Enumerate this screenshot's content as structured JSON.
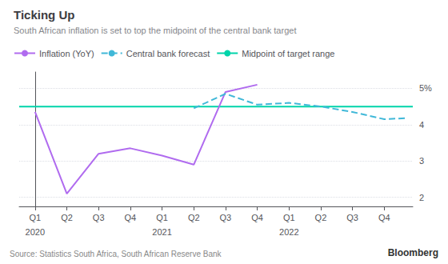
{
  "chart_data": {
    "type": "line",
    "title": "Ticking Up",
    "subtitle": "South African inflation is set to top the midpoint of the central bank target",
    "series": [
      {
        "name": "Inflation (YoY)",
        "color": "#b06bef",
        "line_style": "solid",
        "x": [
          0,
          1,
          2,
          3,
          4,
          5,
          6,
          7
        ],
        "values": [
          4.35,
          2.1,
          3.2,
          3.35,
          3.15,
          2.9,
          4.9,
          5.1
        ]
      },
      {
        "name": "Central bank forecast",
        "color": "#40b8d8",
        "line_style": "dashed",
        "x": [
          5,
          6,
          7,
          8,
          9,
          10,
          11,
          11.7
        ],
        "values": [
          4.45,
          4.85,
          4.55,
          4.6,
          4.5,
          4.35,
          4.15,
          4.18
        ]
      },
      {
        "name": "Midpoint of target range",
        "color": "#00d4aa",
        "line_style": "solid",
        "type": "hline",
        "values": [
          4.5
        ]
      }
    ],
    "xlim": [
      -0.5,
      11.9
    ],
    "xticks": [
      {
        "value": 0,
        "label": "Q1"
      },
      {
        "value": 1,
        "label": "Q2"
      },
      {
        "value": 2,
        "label": "Q3"
      },
      {
        "value": 3,
        "label": "Q4"
      },
      {
        "value": 4,
        "label": "Q1"
      },
      {
        "value": 5,
        "label": "Q2"
      },
      {
        "value": 6,
        "label": "Q3"
      },
      {
        "value": 7,
        "label": "Q4"
      },
      {
        "value": 8,
        "label": "Q1"
      },
      {
        "value": 9,
        "label": "Q2"
      },
      {
        "value": 10,
        "label": "Q3"
      },
      {
        "value": 11,
        "label": "Q4"
      }
    ],
    "ylim": [
      1.75,
      5.45
    ],
    "yticks": [
      2,
      3,
      4,
      {
        "value": 5,
        "label": "5%"
      }
    ],
    "grid": true,
    "annotations": [
      {
        "text": "2020",
        "x": 0
      },
      {
        "text": "2021",
        "x": 4
      },
      {
        "text": "2022",
        "x": 8
      },
      {
        "text": "Source: Statistics South Africa, South African Reserve Bank"
      },
      {
        "text": "Bloomberg"
      }
    ]
  }
}
